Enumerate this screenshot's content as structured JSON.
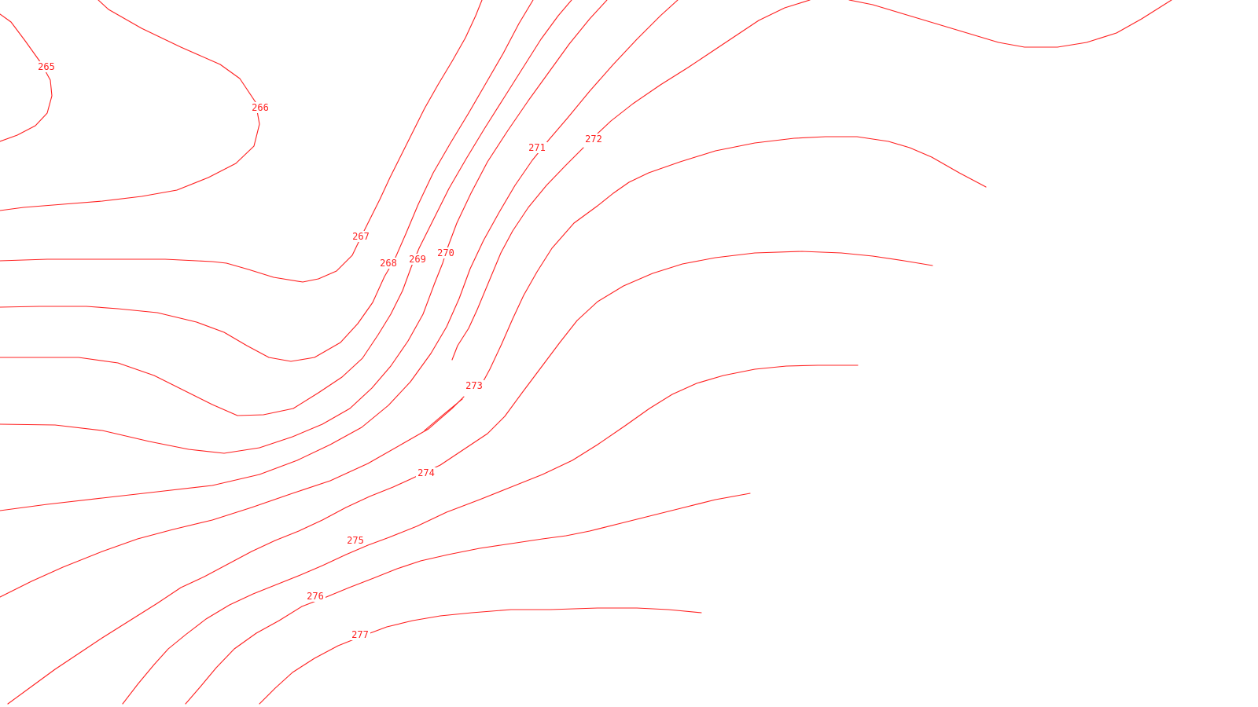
{
  "map": {
    "line_color": "#ff2020",
    "background_color": "#ffffff",
    "contour_labels": [
      "265",
      "266",
      "267",
      "268",
      "269",
      "270",
      "271",
      "272",
      "273",
      "274",
      "275",
      "276",
      "277"
    ]
  }
}
